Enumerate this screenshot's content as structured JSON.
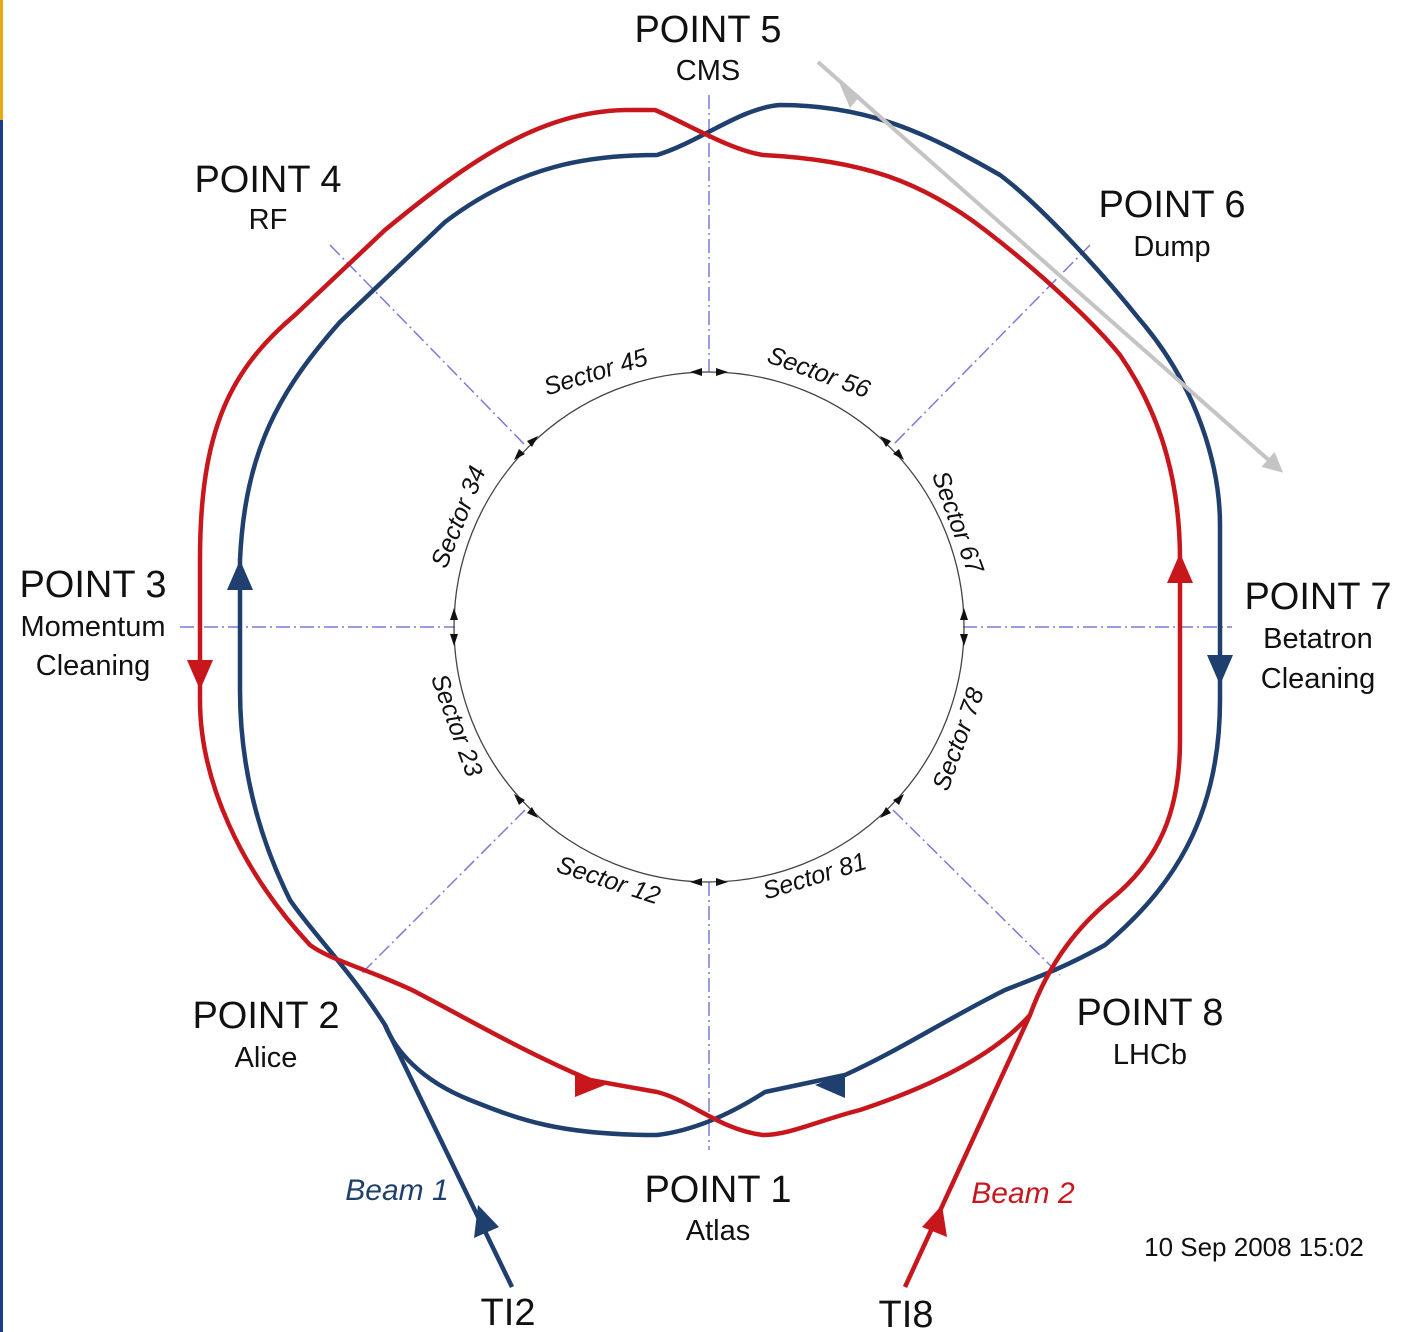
{
  "points": [
    {
      "name": "POINT 5",
      "sub": [
        "CMS"
      ]
    },
    {
      "name": "POINT 4",
      "sub": [
        "RF"
      ]
    },
    {
      "name": "POINT 6",
      "sub": [
        "Dump"
      ]
    },
    {
      "name": "POINT 3",
      "sub": [
        "Momentum",
        "Cleaning"
      ]
    },
    {
      "name": "POINT 7",
      "sub": [
        "Betatron",
        "Cleaning"
      ]
    },
    {
      "name": "POINT 2",
      "sub": [
        "Alice"
      ]
    },
    {
      "name": "POINT 8",
      "sub": [
        "LHCb"
      ]
    },
    {
      "name": "POINT 1",
      "sub": [
        "Atlas"
      ]
    }
  ],
  "sectors": [
    "Sector 45",
    "Sector 56",
    "Sector 34",
    "Sector 67",
    "Sector 23",
    "Sector 78",
    "Sector 12",
    "Sector 81"
  ],
  "beams": {
    "beam1": "Beam 1",
    "beam2": "Beam 2"
  },
  "transfer_lines": {
    "ti2": "TI2",
    "ti8": "TI8"
  },
  "timestamp": "10 Sep 2008 15:02",
  "colors": {
    "beam1": "#1f3f6e",
    "beam2": "#c8161d",
    "axis": "#7b7bd8",
    "dump_line": "#c4c4c4"
  }
}
